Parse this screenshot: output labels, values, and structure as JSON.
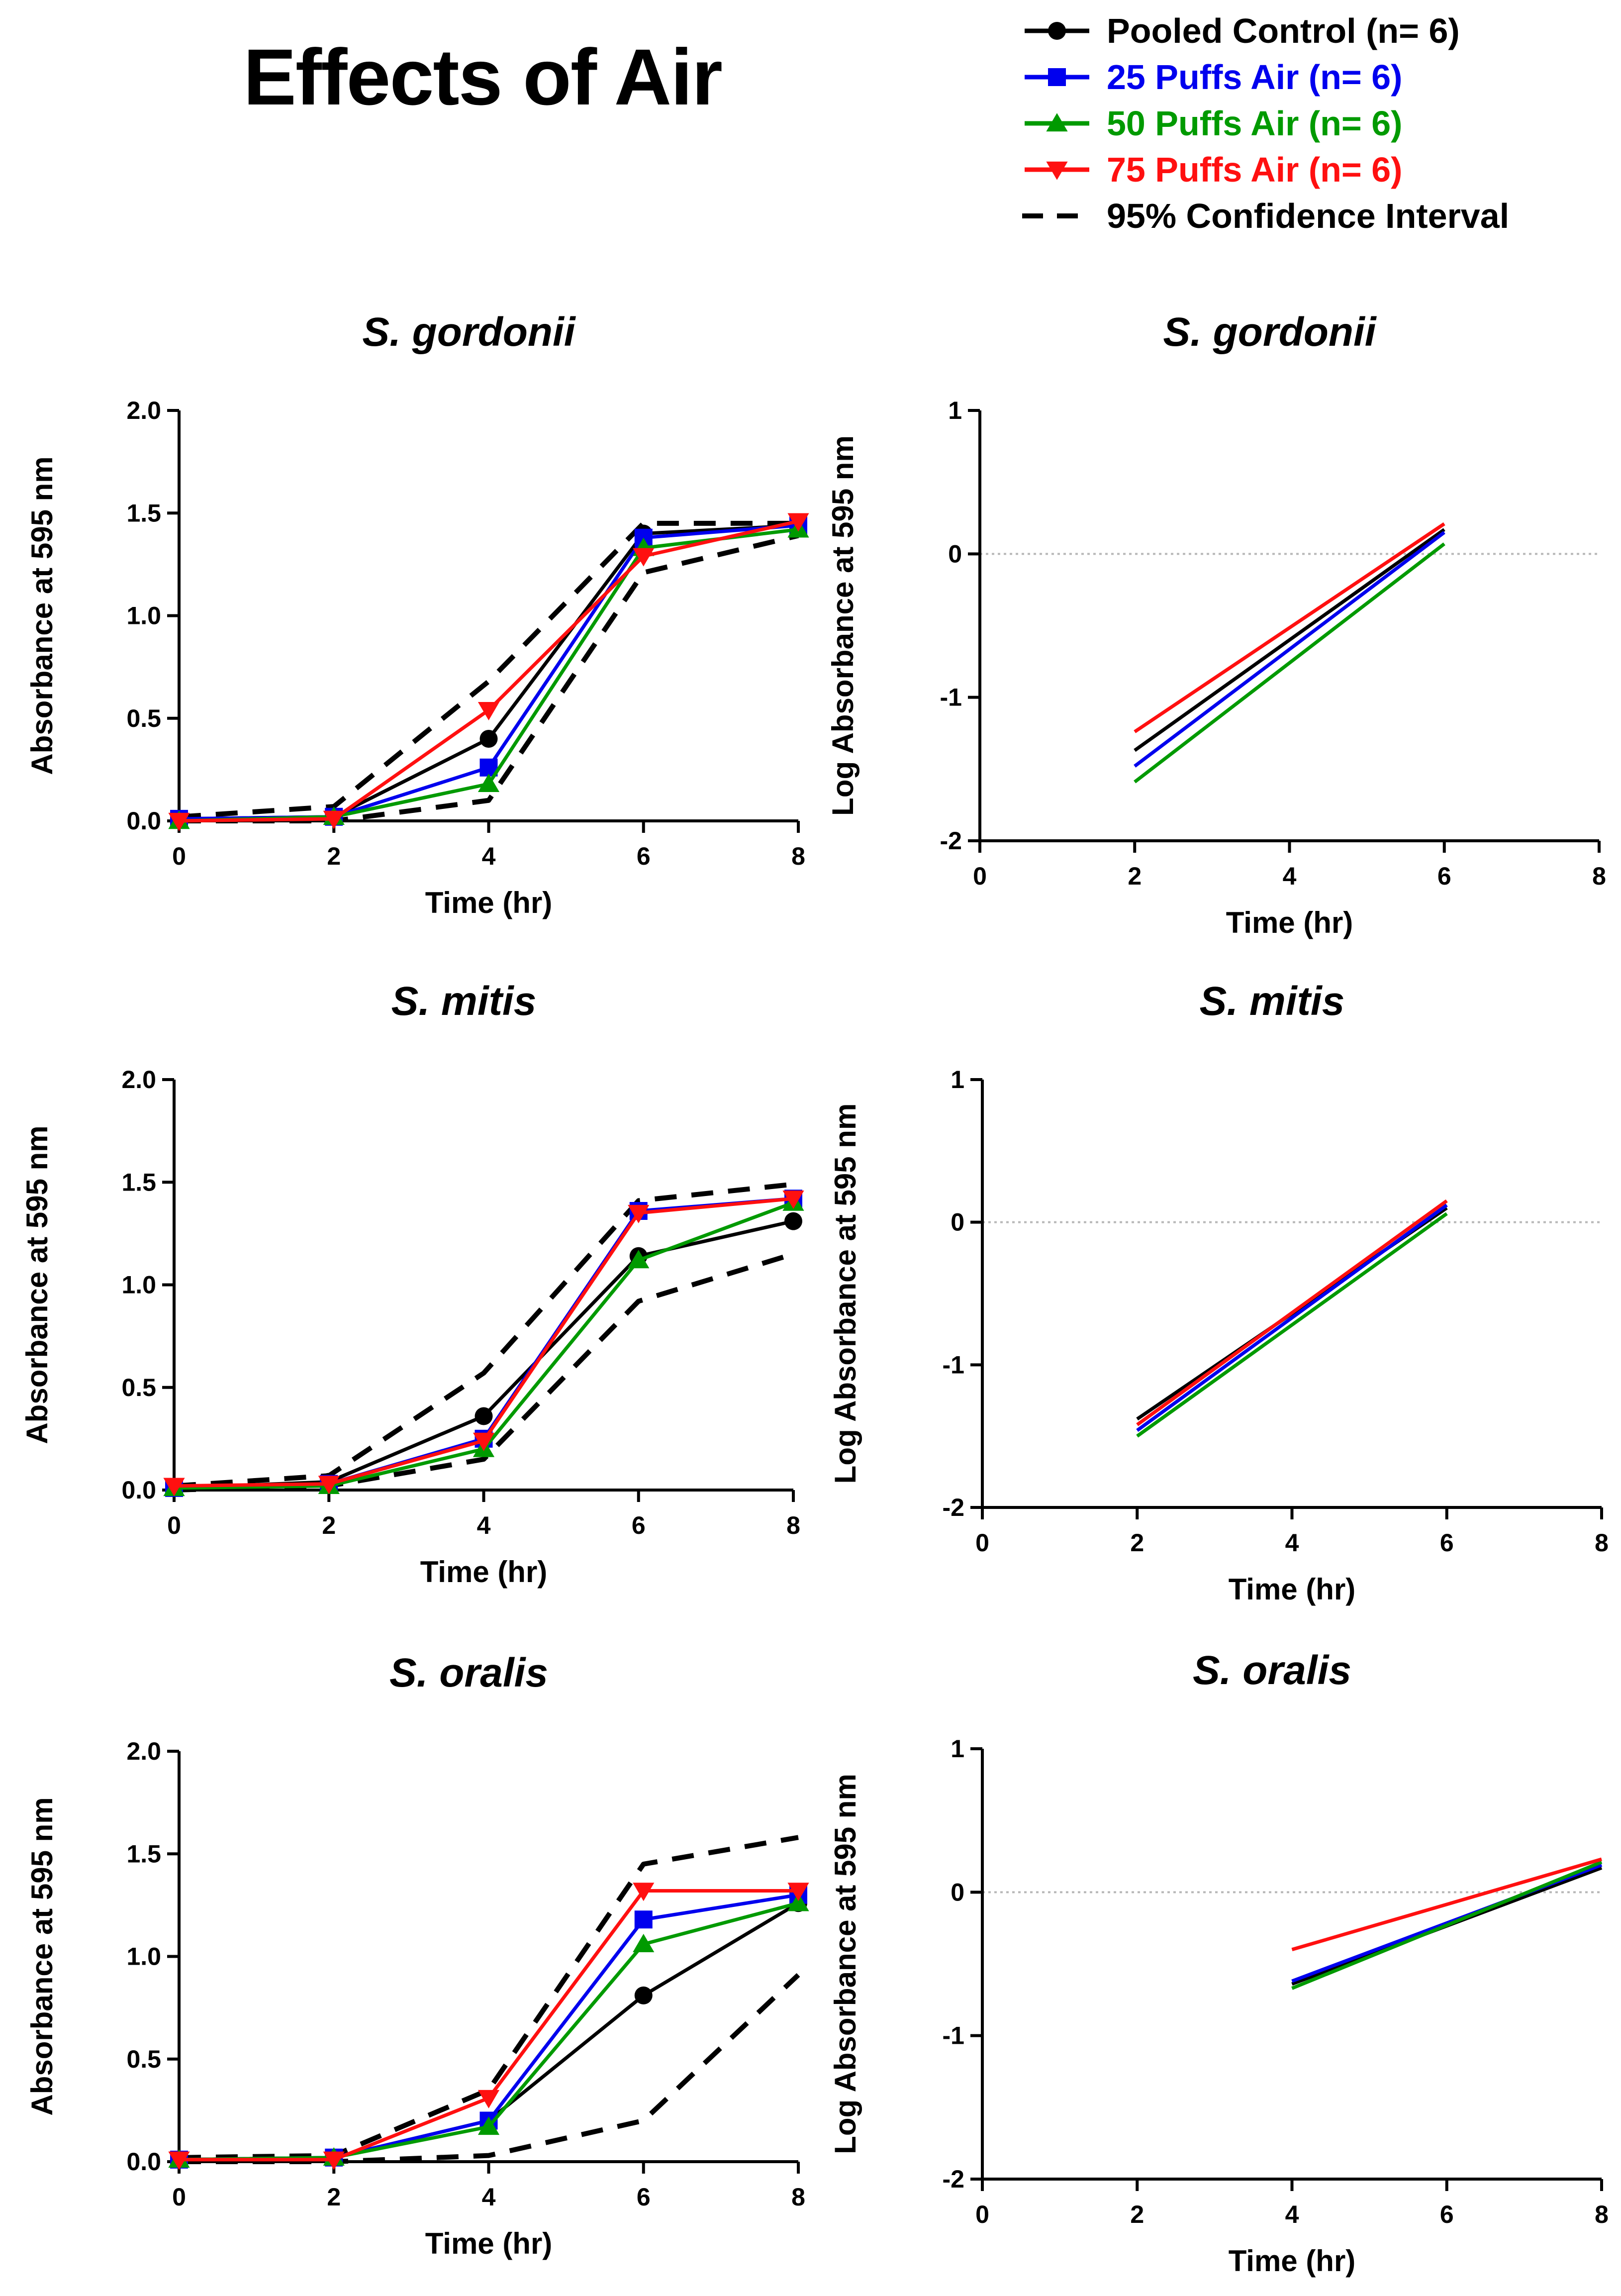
{
  "title": "Effects of Air",
  "legend": [
    {
      "label": "Pooled Control (n= 6)",
      "color": "#000000",
      "marker": "circle",
      "dash": false
    },
    {
      "label": "25 Puffs Air (n= 6)",
      "color": "#0000ee",
      "marker": "square",
      "dash": false
    },
    {
      "label": "50 Puffs Air (n= 6)",
      "color": "#009a00",
      "marker": "triangle-up",
      "dash": false
    },
    {
      "label": "75 Puffs Air (n= 6)",
      "color": "#ff1010",
      "marker": "triangle-down",
      "dash": false
    },
    {
      "label": "95% Confidence Interval",
      "color": "#000000",
      "marker": "none",
      "dash": true
    }
  ],
  "chart_data": [
    {
      "type": "line",
      "title": "S. gordonii",
      "xlabel": "Time (hr)",
      "ylabel": "Absorbance at 595 nm",
      "xlim": [
        0,
        8
      ],
      "ylim": [
        0,
        2
      ],
      "xticks": [
        0,
        2,
        4,
        6,
        8
      ],
      "yticks": [
        0,
        0.5,
        1,
        1.5,
        2
      ],
      "xtick_labels": [
        "0",
        "2",
        "4",
        "6",
        "8"
      ],
      "ytick_labels": [
        "0.0",
        "0.5",
        "1.0",
        "1.5",
        "2.0"
      ],
      "x": [
        0,
        2,
        4,
        6,
        8
      ],
      "series": [
        {
          "name": "Pooled Control (n= 6)",
          "values": [
            0.01,
            0.02,
            0.4,
            1.4,
            1.44
          ]
        },
        {
          "name": "25 Puffs Air (n= 6)",
          "values": [
            0.01,
            0.02,
            0.26,
            1.38,
            1.44
          ]
        },
        {
          "name": "50 Puffs Air (n= 6)",
          "values": [
            0.0,
            0.02,
            0.18,
            1.33,
            1.42
          ]
        },
        {
          "name": "75 Puffs Air (n= 6)",
          "values": [
            0.0,
            0.01,
            0.54,
            1.29,
            1.46
          ]
        }
      ],
      "ci_upper": [
        0.02,
        0.07,
        0.68,
        1.45,
        1.45
      ],
      "ci_lower": [
        0.0,
        0.0,
        0.1,
        1.21,
        1.39
      ]
    },
    {
      "type": "line",
      "title": "S. gordonii",
      "xlabel": "Time (hr)",
      "ylabel": "Log Absorbance at 595 nm",
      "xlim": [
        0,
        8
      ],
      "ylim": [
        -2,
        1
      ],
      "xticks": [
        0,
        2,
        4,
        6,
        8
      ],
      "yticks": [
        -2,
        -1,
        0,
        1
      ],
      "xtick_labels": [
        "0",
        "2",
        "4",
        "6",
        "8"
      ],
      "ytick_labels": [
        "-2",
        "-1",
        "0",
        "1"
      ],
      "zero_reference_line": true,
      "series": [
        {
          "name": "Pooled Control (n= 6)",
          "x": [
            2,
            6
          ],
          "values": [
            -1.37,
            0.17
          ]
        },
        {
          "name": "25 Puffs Air (n= 6)",
          "x": [
            2,
            6
          ],
          "values": [
            -1.48,
            0.15
          ]
        },
        {
          "name": "50 Puffs Air (n= 6)",
          "x": [
            2,
            6
          ],
          "values": [
            -1.59,
            0.07
          ]
        },
        {
          "name": "75 Puffs Air (n= 6)",
          "x": [
            2,
            6
          ],
          "values": [
            -1.24,
            0.21
          ]
        }
      ]
    },
    {
      "type": "line",
      "title": "S. mitis",
      "xlabel": "Time (hr)",
      "ylabel": "Absorbance at 595 nm",
      "xlim": [
        0,
        8
      ],
      "ylim": [
        0,
        2
      ],
      "xticks": [
        0,
        2,
        4,
        6,
        8
      ],
      "yticks": [
        0,
        0.5,
        1,
        1.5,
        2
      ],
      "xtick_labels": [
        "0",
        "2",
        "4",
        "6",
        "8"
      ],
      "ytick_labels": [
        "0.0",
        "0.5",
        "1.0",
        "1.5",
        "2.0"
      ],
      "x": [
        0,
        2,
        4,
        6,
        8
      ],
      "series": [
        {
          "name": "Pooled Control (n= 6)",
          "values": [
            0.01,
            0.04,
            0.36,
            1.14,
            1.31
          ]
        },
        {
          "name": "25 Puffs Air (n= 6)",
          "values": [
            0.01,
            0.03,
            0.25,
            1.36,
            1.42
          ]
        },
        {
          "name": "50 Puffs Air (n= 6)",
          "values": [
            0.01,
            0.02,
            0.2,
            1.12,
            1.4
          ]
        },
        {
          "name": "75 Puffs Air (n= 6)",
          "values": [
            0.02,
            0.03,
            0.24,
            1.35,
            1.42
          ]
        }
      ],
      "ci_upper": [
        0.02,
        0.07,
        0.57,
        1.41,
        1.49
      ],
      "ci_lower": [
        0.0,
        0.02,
        0.15,
        0.92,
        1.15
      ]
    },
    {
      "type": "line",
      "title": "S. mitis",
      "xlabel": "Time (hr)",
      "ylabel": "Log Absorbance at 595 nm",
      "xlim": [
        0,
        8
      ],
      "ylim": [
        -2,
        1
      ],
      "xticks": [
        0,
        2,
        4,
        6,
        8
      ],
      "yticks": [
        -2,
        -1,
        0,
        1
      ],
      "xtick_labels": [
        "0",
        "2",
        "4",
        "6",
        "8"
      ],
      "ytick_labels": [
        "-2",
        "-1",
        "0",
        "1"
      ],
      "zero_reference_line": true,
      "series": [
        {
          "name": "Pooled Control (n= 6)",
          "x": [
            2,
            6
          ],
          "values": [
            -1.38,
            0.1
          ]
        },
        {
          "name": "25 Puffs Air (n= 6)",
          "x": [
            2,
            6
          ],
          "values": [
            -1.46,
            0.12
          ]
        },
        {
          "name": "50 Puffs Air (n= 6)",
          "x": [
            2,
            6
          ],
          "values": [
            -1.5,
            0.06
          ]
        },
        {
          "name": "75 Puffs Air (n= 6)",
          "x": [
            2,
            6
          ],
          "values": [
            -1.42,
            0.15
          ]
        }
      ]
    },
    {
      "type": "line",
      "title": "S. oralis",
      "xlabel": "Time (hr)",
      "ylabel": "Absorbance at 595 nm",
      "xlim": [
        0,
        8
      ],
      "ylim": [
        0,
        2
      ],
      "xticks": [
        0,
        2,
        4,
        6,
        8
      ],
      "yticks": [
        0,
        0.5,
        1,
        1.5,
        2
      ],
      "xtick_labels": [
        "0",
        "2",
        "4",
        "6",
        "8"
      ],
      "ytick_labels": [
        "0.0",
        "0.5",
        "1.0",
        "1.5",
        "2.0"
      ],
      "x": [
        0,
        2,
        4,
        6,
        8
      ],
      "series": [
        {
          "name": "Pooled Control (n= 6)",
          "values": [
            0.01,
            0.02,
            0.2,
            0.81,
            1.26
          ]
        },
        {
          "name": "25 Puffs Air (n= 6)",
          "values": [
            0.01,
            0.02,
            0.2,
            1.18,
            1.3
          ]
        },
        {
          "name": "50 Puffs Air (n= 6)",
          "values": [
            0.01,
            0.02,
            0.17,
            1.06,
            1.26
          ]
        },
        {
          "name": "75 Puffs Air (n= 6)",
          "values": [
            0.01,
            0.01,
            0.31,
            1.32,
            1.32
          ]
        }
      ],
      "ci_upper": [
        0.02,
        0.03,
        0.35,
        1.45,
        1.58
      ],
      "ci_lower": [
        0.0,
        0.0,
        0.03,
        0.2,
        0.91
      ]
    },
    {
      "type": "line",
      "title": "S. oralis",
      "xlabel": "Time (hr)",
      "ylabel": "Log Absorbance at 595 nm",
      "xlim": [
        0,
        8
      ],
      "ylim": [
        -2,
        1
      ],
      "xticks": [
        0,
        2,
        4,
        6,
        8
      ],
      "yticks": [
        -2,
        -1,
        0,
        1
      ],
      "xtick_labels": [
        "0",
        "2",
        "4",
        "6",
        "8"
      ],
      "ytick_labels": [
        "-2",
        "-1",
        "0",
        "1"
      ],
      "zero_reference_line": true,
      "series": [
        {
          "name": "Pooled Control (n= 6)",
          "x": [
            4,
            8
          ],
          "values": [
            -0.64,
            0.17
          ]
        },
        {
          "name": "25 Puffs Air (n= 6)",
          "x": [
            4,
            8
          ],
          "values": [
            -0.62,
            0.19
          ]
        },
        {
          "name": "50 Puffs Air (n= 6)",
          "x": [
            4,
            8
          ],
          "values": [
            -0.67,
            0.21
          ]
        },
        {
          "name": "75 Puffs Air (n= 6)",
          "x": [
            4,
            8
          ],
          "values": [
            -0.4,
            0.23
          ]
        }
      ]
    }
  ]
}
